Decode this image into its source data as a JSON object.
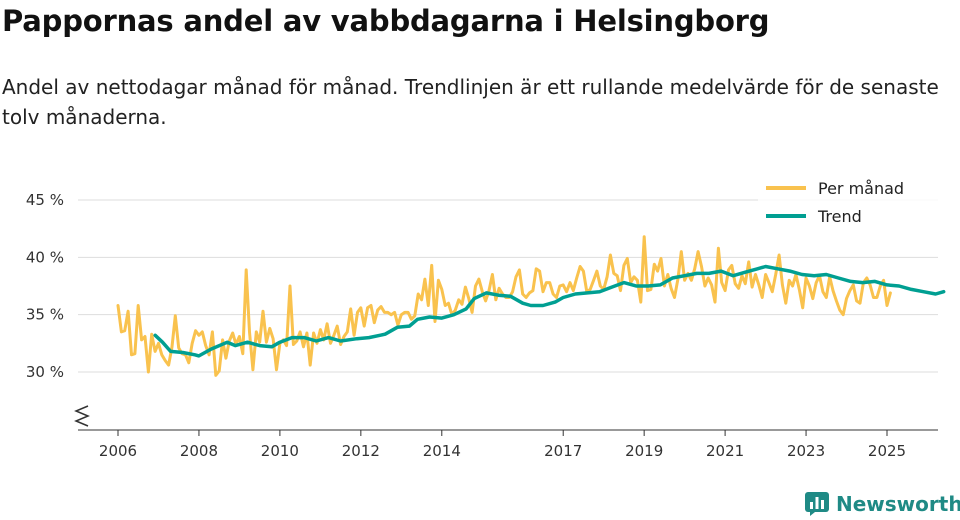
{
  "title": "Pappornas andel av vabbdagarna i Helsingborg",
  "subtitle": "Andel av nettodagar månad för månad. Trendlinjen är ett rullande medelvärde för de senaste tolv månaderna.",
  "brand": "Newsworthy",
  "colors": {
    "monthly": "#f9c24e",
    "trend": "#009f92",
    "grid": "#dddddd",
    "axis": "#333333",
    "brand": "#1f8a85"
  },
  "chart_data": {
    "type": "line",
    "ylim": [
      25,
      45
    ],
    "xlim": [
      2005.7,
      2026.3
    ],
    "y_ticks": [
      30,
      35,
      40,
      45
    ],
    "y_tick_labels": [
      "30 %",
      "35 %",
      "40 %",
      "45 %"
    ],
    "x_ticks": [
      2006,
      2008,
      2010,
      2012,
      2014,
      2017,
      2019,
      2021,
      2023,
      2025
    ],
    "x_tick_labels": [
      "2006",
      "2008",
      "2010",
      "2012",
      "2014",
      "2017",
      "2019",
      "2021",
      "2023",
      "2025"
    ],
    "axis_break": true,
    "legend_position": "top-right",
    "series": [
      {
        "name": "Per månad",
        "color": "#f9c24e",
        "start": 2006.0,
        "step": 0.083333,
        "values": [
          35.8,
          33.5,
          33.6,
          35.3,
          31.5,
          31.6,
          35.8,
          32.8,
          33.1,
          30.0,
          33.3,
          31.8,
          32.5,
          31.5,
          31.0,
          30.6,
          32.2,
          34.9,
          32.1,
          31.6,
          31.5,
          30.8,
          32.5,
          33.6,
          33.2,
          33.5,
          32.3,
          31.5,
          33.5,
          29.7,
          30.1,
          32.8,
          31.2,
          32.7,
          33.4,
          32.4,
          33.1,
          31.6,
          38.9,
          33.5,
          30.2,
          33.5,
          32.6,
          35.3,
          32.6,
          33.8,
          32.9,
          30.2,
          32.5,
          32.8,
          32.3,
          37.5,
          32.4,
          32.7,
          33.5,
          32.2,
          33.4,
          30.6,
          33.4,
          32.5,
          33.7,
          32.8,
          34.2,
          32.5,
          33.2,
          34.0,
          32.4,
          33.1,
          33.5,
          35.5,
          33.2,
          35.2,
          35.6,
          34.0,
          35.6,
          35.8,
          34.3,
          35.4,
          35.7,
          35.2,
          35.2,
          35.0,
          35.2,
          34.1,
          35.0,
          35.2,
          35.2,
          34.6,
          34.9,
          36.8,
          36.3,
          38.1,
          35.8,
          39.3,
          34.4,
          38.0,
          37.2,
          35.8,
          36.0,
          35.0,
          35.4,
          36.3,
          35.9,
          37.4,
          36.4,
          35.2,
          37.5,
          38.1,
          37.0,
          36.2,
          37.1,
          38.5,
          36.3,
          37.3,
          36.8,
          36.5,
          36.5,
          37.0,
          38.3,
          38.9,
          36.8,
          36.5,
          36.9,
          37.1,
          39.0,
          38.8,
          37.0,
          37.8,
          37.8,
          36.8,
          36.5,
          37.5,
          37.6,
          37.0,
          37.8,
          37.1,
          38.2,
          39.2,
          38.8,
          37.0,
          37.2,
          38.0,
          38.8,
          37.5,
          37.2,
          38.3,
          40.2,
          38.6,
          38.4,
          37.1,
          39.3,
          39.9,
          37.8,
          38.3,
          38.0,
          36.1,
          41.8,
          37.1,
          37.2,
          39.4,
          38.8,
          39.9,
          37.5,
          38.5,
          37.3,
          36.5,
          38.1,
          40.5,
          38.0,
          38.6,
          38.0,
          39.0,
          40.5,
          39.2,
          37.5,
          38.2,
          37.6,
          36.1,
          40.8,
          37.8,
          37.1,
          38.9,
          39.3,
          37.7,
          37.3,
          38.4,
          37.7,
          39.6,
          37.4,
          38.5,
          37.6,
          36.5,
          38.5,
          37.8,
          37.0,
          38.5,
          40.2,
          37.6,
          36.0,
          38.0,
          37.5,
          38.5,
          37.2,
          35.6,
          38.2,
          37.5,
          36.4,
          37.8,
          38.4,
          37.0,
          36.5,
          38.3,
          37.1,
          36.2,
          35.4,
          35.0,
          36.4,
          37.1,
          37.6,
          36.2,
          36.0,
          37.8,
          38.2,
          37.6,
          36.5,
          36.5,
          37.5,
          38.0,
          35.8,
          36.9
        ]
      },
      {
        "name": "Trend",
        "color": "#009f92",
        "points": [
          [
            2006.92,
            33.2
          ],
          [
            2007.1,
            32.6
          ],
          [
            2007.3,
            31.8
          ],
          [
            2007.6,
            31.7
          ],
          [
            2007.9,
            31.5
          ],
          [
            2008.0,
            31.4
          ],
          [
            2008.3,
            32.0
          ],
          [
            2008.7,
            32.6
          ],
          [
            2008.9,
            32.3
          ],
          [
            2009.2,
            32.6
          ],
          [
            2009.5,
            32.3
          ],
          [
            2009.8,
            32.2
          ],
          [
            2010.0,
            32.6
          ],
          [
            2010.3,
            33.0
          ],
          [
            2010.6,
            33.0
          ],
          [
            2010.9,
            32.7
          ],
          [
            2011.2,
            33.0
          ],
          [
            2011.5,
            32.7
          ],
          [
            2011.9,
            32.9
          ],
          [
            2012.2,
            33.0
          ],
          [
            2012.6,
            33.3
          ],
          [
            2012.9,
            33.9
          ],
          [
            2013.2,
            34.0
          ],
          [
            2013.4,
            34.6
          ],
          [
            2013.7,
            34.8
          ],
          [
            2014.0,
            34.7
          ],
          [
            2014.3,
            35.0
          ],
          [
            2014.6,
            35.5
          ],
          [
            2014.8,
            36.4
          ],
          [
            2015.1,
            36.9
          ],
          [
            2015.4,
            36.7
          ],
          [
            2015.7,
            36.6
          ],
          [
            2016.0,
            36.0
          ],
          [
            2016.2,
            35.8
          ],
          [
            2016.5,
            35.8
          ],
          [
            2016.8,
            36.1
          ],
          [
            2017.0,
            36.5
          ],
          [
            2017.3,
            36.8
          ],
          [
            2017.6,
            36.9
          ],
          [
            2017.9,
            37.0
          ],
          [
            2018.2,
            37.4
          ],
          [
            2018.5,
            37.8
          ],
          [
            2018.8,
            37.5
          ],
          [
            2019.1,
            37.5
          ],
          [
            2019.4,
            37.6
          ],
          [
            2019.7,
            38.2
          ],
          [
            2020.0,
            38.4
          ],
          [
            2020.3,
            38.6
          ],
          [
            2020.6,
            38.6
          ],
          [
            2020.9,
            38.8
          ],
          [
            2021.2,
            38.4
          ],
          [
            2021.5,
            38.7
          ],
          [
            2021.8,
            39.0
          ],
          [
            2022.0,
            39.2
          ],
          [
            2022.3,
            39.0
          ],
          [
            2022.6,
            38.8
          ],
          [
            2022.9,
            38.5
          ],
          [
            2023.2,
            38.4
          ],
          [
            2023.5,
            38.5
          ],
          [
            2023.8,
            38.2
          ],
          [
            2024.1,
            37.9
          ],
          [
            2024.4,
            37.8
          ],
          [
            2024.7,
            37.9
          ],
          [
            2025.0,
            37.6
          ],
          [
            2025.3,
            37.5
          ],
          [
            2025.6,
            37.2
          ],
          [
            2025.9,
            37.0
          ],
          [
            2026.2,
            36.8
          ],
          [
            2026.4,
            37.0
          ]
        ]
      }
    ]
  }
}
